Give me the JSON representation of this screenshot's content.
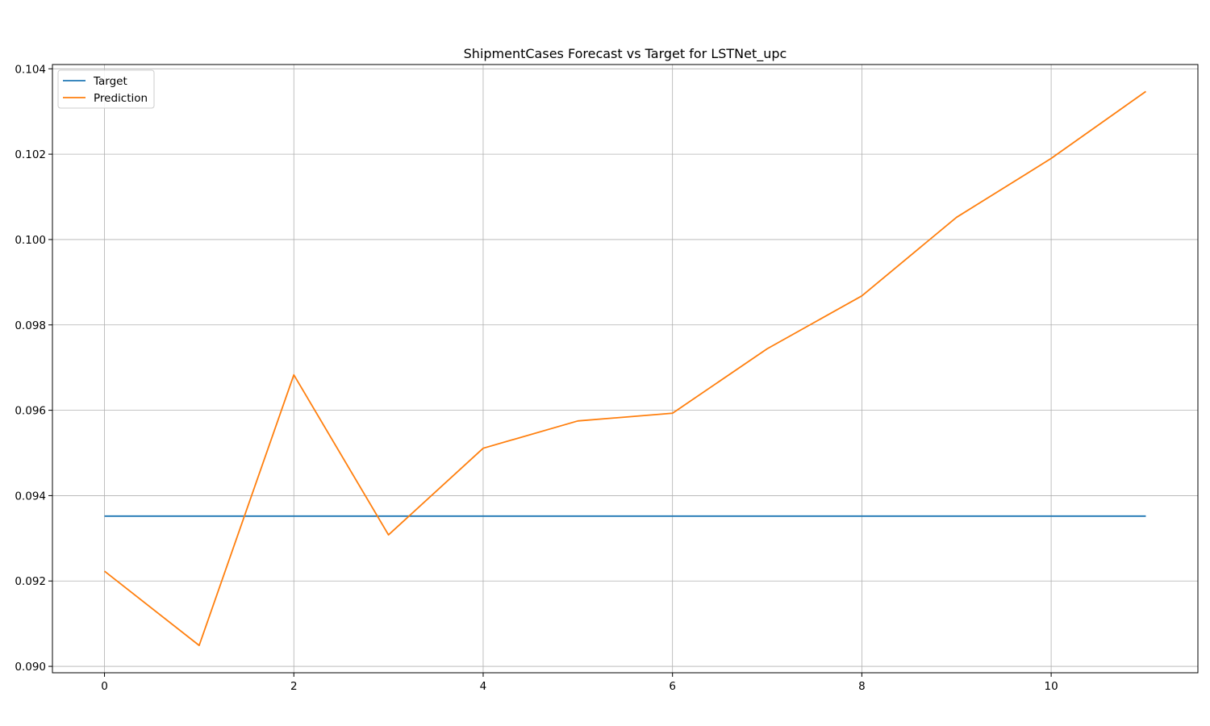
{
  "chart_data": {
    "type": "line",
    "title": "ShipmentCases Forecast vs Target for LSTNet_upc",
    "xlabel": "",
    "ylabel": "",
    "x": [
      0,
      1,
      2,
      3,
      4,
      5,
      6,
      7,
      8,
      9,
      10,
      11
    ],
    "xlim": [
      -0.55,
      11.55
    ],
    "ylim": [
      0.08985,
      0.1041
    ],
    "x_ticks": [
      0,
      2,
      4,
      6,
      8,
      10
    ],
    "x_tick_labels": [
      "0",
      "2",
      "4",
      "6",
      "8",
      "10"
    ],
    "y_ticks": [
      0.09,
      0.092,
      0.094,
      0.096,
      0.098,
      0.1,
      0.102,
      0.104
    ],
    "y_tick_labels": [
      "0.090",
      "0.092",
      "0.094",
      "0.096",
      "0.098",
      "0.100",
      "0.102",
      "0.104"
    ],
    "grid": true,
    "legend_position": "top-left",
    "series": [
      {
        "name": "Target",
        "color": "#1f77b4",
        "values": [
          0.09352,
          0.09352,
          0.09352,
          0.09352,
          0.09352,
          0.09352,
          0.09352,
          0.09352,
          0.09352,
          0.09352,
          0.09352,
          0.09352
        ]
      },
      {
        "name": "Prediction",
        "color": "#ff7f0e",
        "values": [
          0.09223,
          0.09049,
          0.09683,
          0.09308,
          0.09511,
          0.09575,
          0.09593,
          0.09744,
          0.09868,
          0.10052,
          0.1019,
          0.10347
        ]
      }
    ]
  }
}
